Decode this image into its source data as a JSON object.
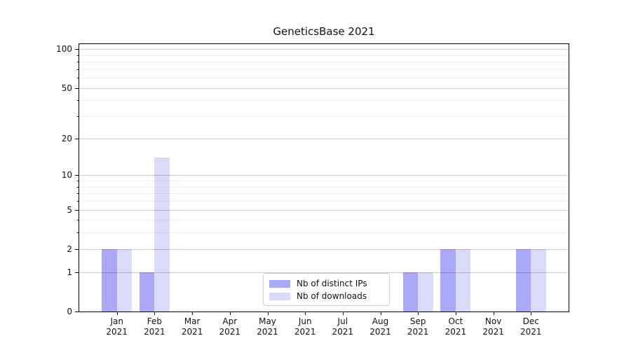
{
  "chart_data": {
    "type": "bar",
    "title": "GeneticsBase 2021",
    "year": "2021",
    "categories": [
      "Jan",
      "Feb",
      "Mar",
      "Apr",
      "May",
      "Jun",
      "Jul",
      "Aug",
      "Sep",
      "Oct",
      "Nov",
      "Dec"
    ],
    "series": [
      {
        "name": "Nb of distinct IPs",
        "color": "#a9a9f7",
        "values": [
          2,
          1,
          0,
          0,
          0,
          0,
          0,
          0,
          1,
          2,
          0,
          2
        ]
      },
      {
        "name": "Nb of downloads",
        "color": "#d9dbfa",
        "values": [
          2,
          14,
          0,
          0,
          0,
          0,
          0,
          0,
          1,
          2,
          0,
          2
        ]
      }
    ],
    "xlabel": "",
    "ylabel": "",
    "yscale": "log10(value+1)",
    "ylim": [
      0,
      109
    ],
    "yticks": [
      0,
      1,
      2,
      5,
      10,
      20,
      50,
      100
    ],
    "yticks_minor": [
      3,
      4,
      6,
      7,
      8,
      9,
      30,
      40,
      60,
      70,
      80,
      90
    ],
    "grid": "major+minor, drawn above bars",
    "legend_position": "lower center"
  }
}
